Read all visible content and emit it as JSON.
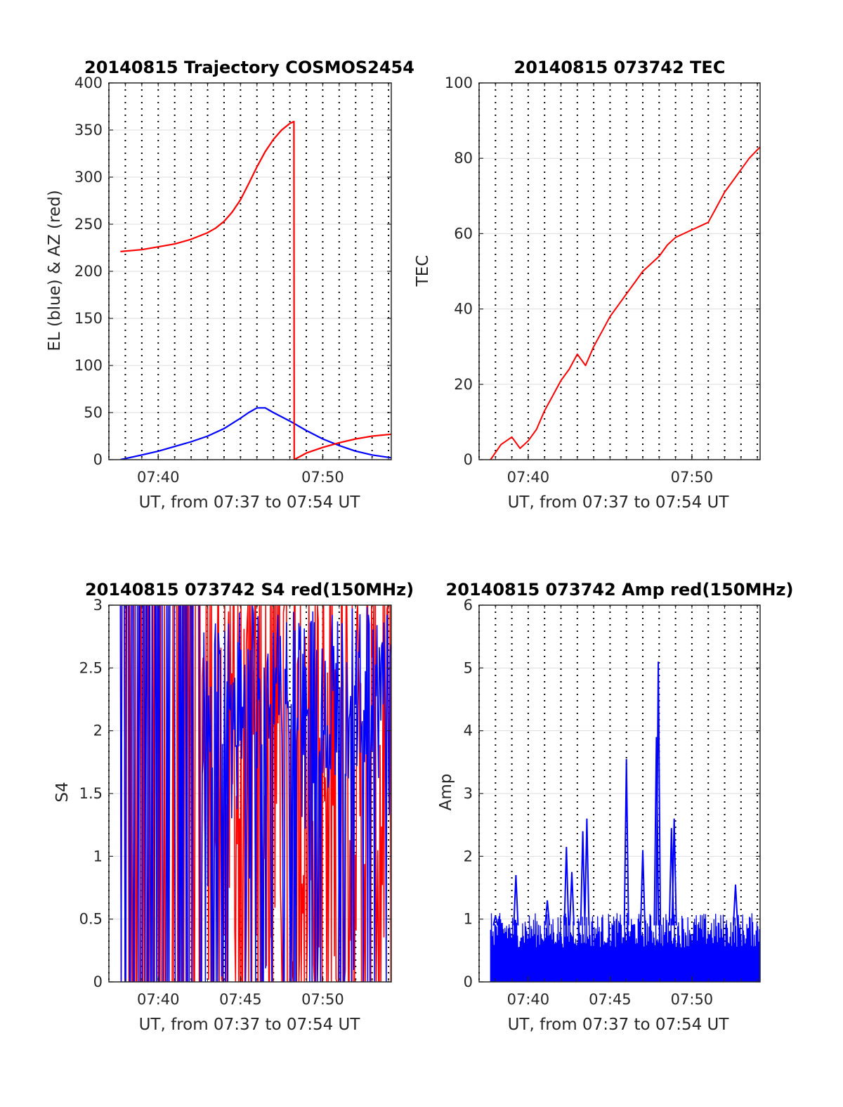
{
  "chart_data": [
    {
      "type": "line",
      "title": "20140815 Trajectory COSMOS2454",
      "xlabel": "UT, from 07:37 to 07:54 UT",
      "ylabel": "EL (blue) & AZ (red)",
      "xlim": [
        "07:37:00",
        "07:54:10"
      ],
      "ylim": [
        0,
        400
      ],
      "yticks": [
        "0",
        "50",
        "100",
        "150",
        "200",
        "250",
        "300",
        "350",
        "400"
      ],
      "xticks": [
        "07:40",
        "07:50"
      ],
      "grid": true,
      "series": [
        {
          "color": "#0000ff",
          "x": [
            "07:37:42",
            "07:39:00",
            "07:40:00",
            "07:41:00",
            "07:42:00",
            "07:43:00",
            "07:44:00",
            "07:45:00",
            "07:45:30",
            "07:46:00",
            "07:46:30",
            "07:47:00",
            "07:48:00",
            "07:49:00",
            "07:50:00",
            "07:51:00",
            "07:52:00",
            "07:53:00",
            "07:54:10"
          ],
          "y": [
            0,
            5,
            9,
            14,
            19,
            25,
            33,
            44,
            50,
            55,
            55,
            50,
            41,
            31,
            22,
            15,
            9,
            5,
            2
          ]
        },
        {
          "color": "#ff0000",
          "x": [
            "07:37:42",
            "07:39:00",
            "07:40:00",
            "07:41:00",
            "07:42:00",
            "07:43:00",
            "07:43:30",
            "07:44:00",
            "07:44:30",
            "07:45:00",
            "07:45:30",
            "07:46:00",
            "07:46:30",
            "07:47:00",
            "07:47:30",
            "07:48:00",
            "07:48:15",
            "07:48:16",
            "07:49:00",
            "07:50:00",
            "07:51:00",
            "07:52:00",
            "07:53:00",
            "07:54:10"
          ],
          "y": [
            221,
            223,
            226,
            229,
            234,
            241,
            246,
            253,
            263,
            276,
            293,
            311,
            327,
            340,
            350,
            357,
            359,
            0,
            7,
            13,
            18,
            22,
            25,
            27
          ]
        }
      ]
    },
    {
      "type": "line",
      "title": "20140815 073742 TEC",
      "xlabel": "UT, from 07:37 to 07:54 UT",
      "ylabel": "TEC",
      "xlim": [
        "07:37:00",
        "07:54:10"
      ],
      "ylim": [
        0,
        100
      ],
      "yticks": [
        "0",
        "20",
        "40",
        "60",
        "80",
        "100"
      ],
      "xticks": [
        "07:40",
        "07:50"
      ],
      "grid": true,
      "series": [
        {
          "color": "#ff0000",
          "x": [
            "07:37:42",
            "07:38:20",
            "07:39:00",
            "07:39:30",
            "07:40:00",
            "07:40:30",
            "07:41:00",
            "07:41:30",
            "07:42:00",
            "07:42:30",
            "07:43:00",
            "07:43:30",
            "07:44:00",
            "07:44:30",
            "07:45:00",
            "07:45:30",
            "07:46:00",
            "07:46:30",
            "07:47:00",
            "07:47:30",
            "07:48:00",
            "07:48:30",
            "07:49:00",
            "07:49:30",
            "07:50:00",
            "07:50:30",
            "07:51:00",
            "07:51:30",
            "07:52:00",
            "07:52:30",
            "07:53:00",
            "07:53:30",
            "07:54:10"
          ],
          "y": [
            0,
            4,
            6,
            3,
            5,
            8,
            13,
            17,
            21,
            24,
            28,
            25,
            30,
            34,
            38,
            41,
            44,
            47,
            50,
            52,
            54,
            57,
            59,
            60,
            61,
            62,
            63,
            67,
            71,
            74,
            77,
            80,
            83
          ]
        }
      ]
    },
    {
      "type": "line",
      "title": "20140815 073742 S4 red(150MHz)",
      "xlabel": "UT, from 07:37 to 07:54 UT",
      "ylabel": "S4",
      "xlim": [
        "07:37:00",
        "07:54:10"
      ],
      "ylim": [
        0,
        3
      ],
      "yticks": [
        "0",
        "0.5",
        "1",
        "1.5",
        "2",
        "2.5",
        "3"
      ],
      "xticks": [
        "07:40",
        "07:45",
        "07:50"
      ],
      "grid": true,
      "series": [
        {
          "color": "#ff0000",
          "x_range": [
            "07:37:42",
            "07:54:10"
          ],
          "y_range": [
            0,
            3
          ]
        },
        {
          "color": "#0000ff",
          "x_range": [
            "07:37:42",
            "07:54:10"
          ],
          "y_range": [
            0,
            3
          ]
        }
      ]
    },
    {
      "type": "line",
      "title": "20140815 073742 Amp red(150MHz)",
      "xlabel": "UT, from 07:37 to 07:54 UT",
      "ylabel": "Amp",
      "xlim": [
        "07:37:00",
        "07:54:10"
      ],
      "ylim": [
        0,
        6
      ],
      "yticks": [
        "0",
        "1",
        "2",
        "3",
        "4",
        "5",
        "6"
      ],
      "xticks": [
        "07:40",
        "07:45",
        "07:50"
      ],
      "grid": true,
      "series": [
        {
          "color": "#0000ff",
          "baseline_max": 1.0,
          "peaks": [
            {
              "x": "07:38:00",
              "y": 1.05
            },
            {
              "x": "07:39:15",
              "y": 1.7
            },
            {
              "x": "07:41:10",
              "y": 1.3
            },
            {
              "x": "07:42:20",
              "y": 2.15
            },
            {
              "x": "07:42:40",
              "y": 1.75
            },
            {
              "x": "07:43:20",
              "y": 2.4
            },
            {
              "x": "07:43:35",
              "y": 2.6
            },
            {
              "x": "07:46:00",
              "y": 3.55
            },
            {
              "x": "07:47:00",
              "y": 2.1
            },
            {
              "x": "07:47:50",
              "y": 3.9
            },
            {
              "x": "07:47:57",
              "y": 5.1
            },
            {
              "x": "07:48:45",
              "y": 2.45
            },
            {
              "x": "07:48:55",
              "y": 2.6
            },
            {
              "x": "07:52:40",
              "y": 1.55
            }
          ]
        }
      ]
    }
  ]
}
